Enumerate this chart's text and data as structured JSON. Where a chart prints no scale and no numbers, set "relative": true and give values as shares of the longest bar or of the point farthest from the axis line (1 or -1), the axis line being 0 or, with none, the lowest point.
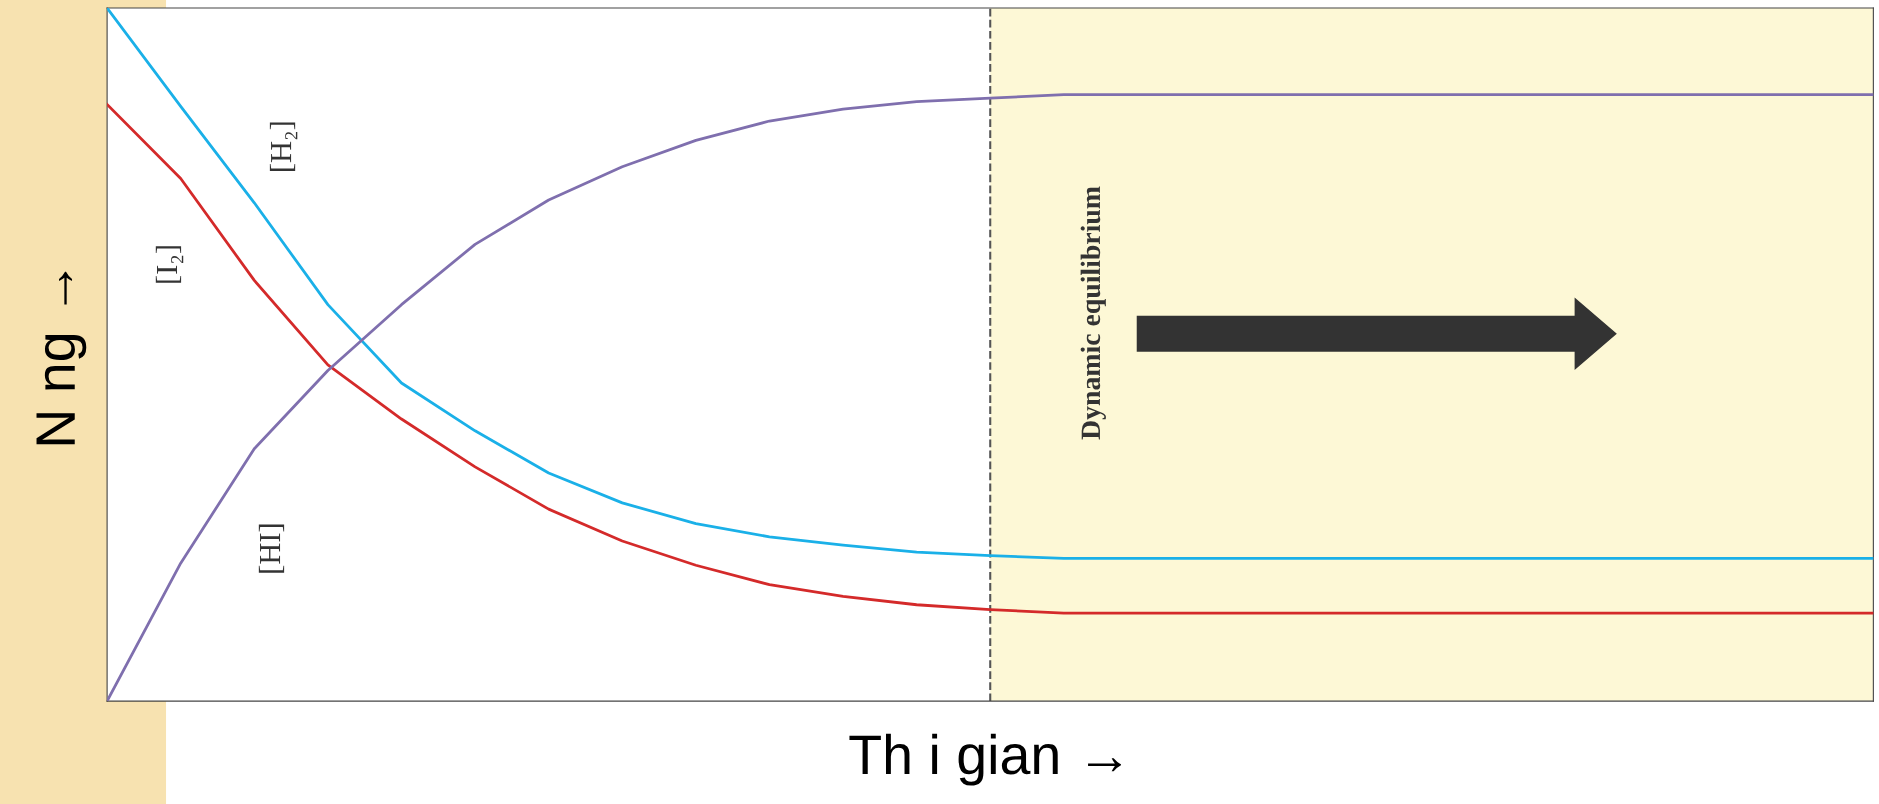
{
  "chart_data": {
    "type": "line",
    "relative": true,
    "xlabel": "Th i gian →",
    "ylabel": "N ng →",
    "categories": [
      null,
      null,
      null,
      null,
      null,
      null,
      null,
      null,
      null,
      null,
      null,
      null,
      null,
      null,
      null,
      null,
      null,
      null,
      null,
      null,
      null,
      null,
      null,
      null,
      null
    ],
    "series": [
      {
        "name": "[H₂]",
        "color": "#1ab0e8",
        "values": [
          1.0,
          0.858,
          0.719,
          0.572,
          0.459,
          0.39,
          0.329,
          0.286,
          0.256,
          0.237,
          0.225,
          0.215,
          0.21,
          0.206,
          0.206,
          0.206,
          0.206,
          0.206,
          0.206,
          0.206,
          0.206,
          0.206,
          0.206,
          0.206,
          0.206
        ]
      },
      {
        "name": "[I₂]",
        "color": "#d42a2a",
        "values": [
          0.861,
          0.754,
          0.607,
          0.485,
          0.407,
          0.338,
          0.277,
          0.231,
          0.196,
          0.168,
          0.151,
          0.139,
          0.132,
          0.127,
          0.127,
          0.127,
          0.127,
          0.127,
          0.127,
          0.127,
          0.127,
          0.127,
          0.127,
          0.127,
          0.127
        ]
      },
      {
        "name": "[HI]",
        "color": "#7f6fae",
        "values": [
          0.0,
          0.199,
          0.364,
          0.477,
          0.572,
          0.659,
          0.723,
          0.771,
          0.809,
          0.837,
          0.854,
          0.865,
          0.87,
          0.875,
          0.875,
          0.875,
          0.875,
          0.875,
          0.875,
          0.875,
          0.875,
          0.875,
          0.875,
          0.875,
          0.875
        ]
      }
    ],
    "annotations": [
      "Dynamic equilibrium"
    ],
    "legend": false,
    "grid": false,
    "marker": "none",
    "line_style": "solid"
  }
}
